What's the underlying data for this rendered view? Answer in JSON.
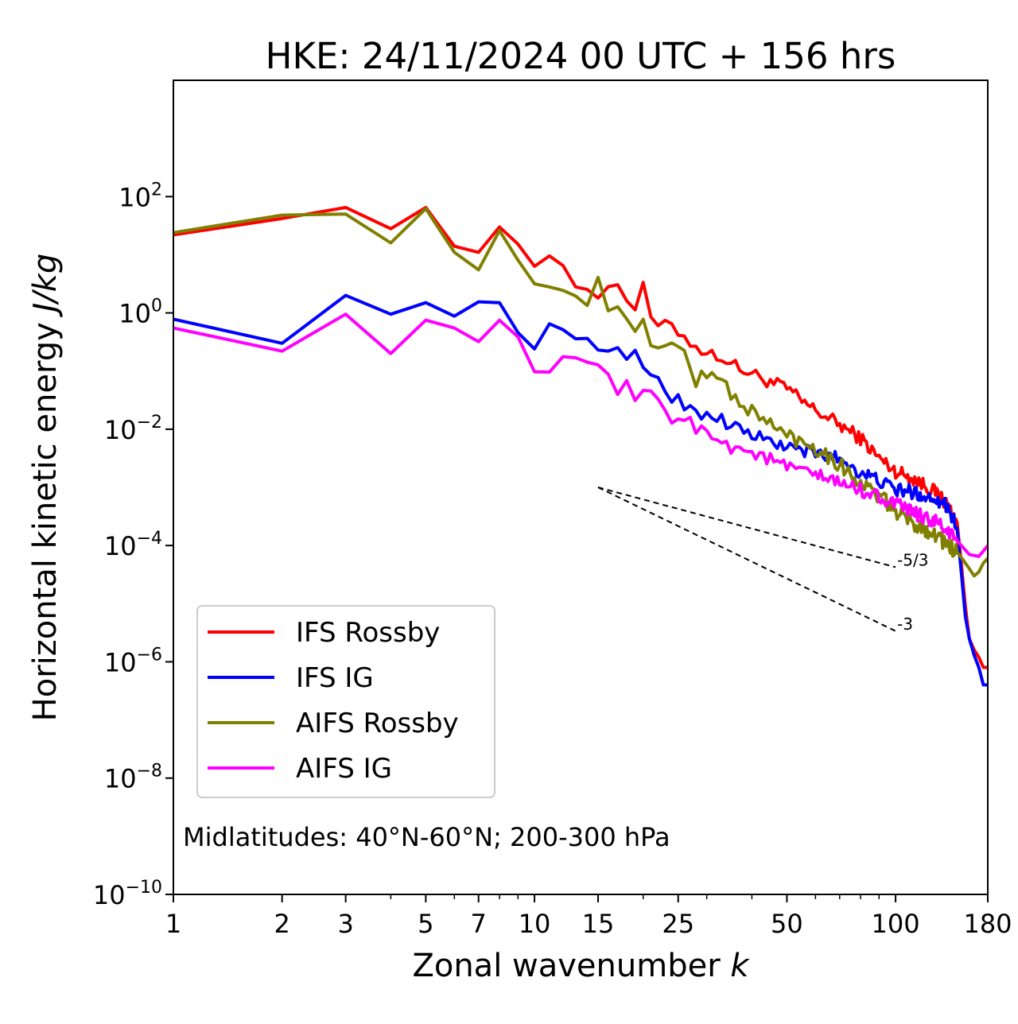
{
  "chart_data": {
    "type": "line",
    "title": "HKE: 24/11/2024 00 UTC + 156 hrs",
    "xlabel": "Zonal wavenumber",
    "xlabel_var": "k",
    "ylabel": "Horizontal kinetic energy",
    "ylabel_units": "J/kg",
    "xscale": "log",
    "yscale": "log",
    "xlim": [
      1,
      180
    ],
    "ylim": [
      1e-10,
      10000
    ],
    "x_ticks": [
      1,
      2,
      3,
      5,
      7,
      10,
      15,
      25,
      50,
      100,
      180
    ],
    "y_ticks": [
      {
        "base": "10",
        "exp": "−10",
        "value": 1e-10
      },
      {
        "base": "10",
        "exp": "−8",
        "value": 1e-08
      },
      {
        "base": "10",
        "exp": "−6",
        "value": 1e-06
      },
      {
        "base": "10",
        "exp": "−4",
        "value": 0.0001
      },
      {
        "base": "10",
        "exp": "−2",
        "value": 0.01
      },
      {
        "base": "10",
        "exp": "0",
        "value": 1
      },
      {
        "base": "10",
        "exp": "2",
        "value": 100
      }
    ],
    "grid": false,
    "legend_position": "lower-left",
    "annotation": "Midlatitudes: 40°N-60°N; 200-300 hPa",
    "reference_slopes": [
      {
        "label": "-5/3",
        "slope": -1.6667,
        "x": [
          15,
          100
        ],
        "y0": 0.001
      },
      {
        "label": "-3",
        "slope": -3,
        "x": [
          15,
          100
        ],
        "y0": 0.001
      }
    ],
    "series": [
      {
        "name": "IFS Rossby",
        "color": "#ff0000",
        "anchors": [
          [
            1,
            22
          ],
          [
            2,
            42
          ],
          [
            3,
            65
          ],
          [
            4,
            28
          ],
          [
            5,
            65
          ],
          [
            6,
            14
          ],
          [
            7,
            11
          ],
          [
            8,
            30
          ],
          [
            9,
            20
          ],
          [
            10,
            7
          ],
          [
            11,
            10
          ],
          [
            12,
            5
          ],
          [
            13,
            2.9
          ],
          [
            14,
            3
          ],
          [
            15,
            2.3
          ],
          [
            16,
            2.5
          ],
          [
            17,
            3.5
          ],
          [
            18,
            1.7
          ],
          [
            19,
            1.3
          ],
          [
            20,
            2.6
          ],
          [
            21,
            0.9
          ],
          [
            22,
            0.55
          ],
          [
            24,
            0.6
          ],
          [
            26,
            0.4
          ],
          [
            28,
            0.27
          ],
          [
            30,
            0.2
          ],
          [
            33,
            0.18
          ],
          [
            36,
            0.12
          ],
          [
            40,
            0.09
          ],
          [
            45,
            0.065
          ],
          [
            50,
            0.05
          ],
          [
            55,
            0.03
          ],
          [
            60,
            0.021
          ],
          [
            70,
            0.012
          ],
          [
            80,
            0.007
          ],
          [
            90,
            0.0032
          ],
          [
            100,
            0.0019
          ],
          [
            110,
            0.0015
          ],
          [
            120,
            0.0011
          ],
          [
            130,
            0.0008
          ],
          [
            140,
            0.00048
          ],
          [
            148,
            0.00025
          ],
          [
            152,
            5e-05
          ],
          [
            156,
            9e-06
          ],
          [
            160,
            2.5e-06
          ],
          [
            165,
            1.6e-06
          ],
          [
            170,
            1.2e-06
          ],
          [
            175,
            8e-07
          ],
          [
            180,
            8e-07
          ]
        ],
        "noise": 0.12
      },
      {
        "name": "IFS IG",
        "color": "#0000ff",
        "anchors": [
          [
            1,
            0.78
          ],
          [
            2,
            0.3
          ],
          [
            3,
            2.0
          ],
          [
            4,
            0.95
          ],
          [
            5,
            1.5
          ],
          [
            6,
            0.88
          ],
          [
            7,
            1.55
          ],
          [
            8,
            1.5
          ],
          [
            9,
            0.6
          ],
          [
            10,
            0.2
          ],
          [
            11,
            0.6
          ],
          [
            12,
            0.65
          ],
          [
            13,
            0.28
          ],
          [
            14,
            0.45
          ],
          [
            15,
            0.3
          ],
          [
            16,
            0.17
          ],
          [
            17,
            0.2
          ],
          [
            18,
            0.15
          ],
          [
            19,
            0.18
          ],
          [
            20,
            0.12
          ],
          [
            22,
            0.08
          ],
          [
            24,
            0.035
          ],
          [
            26,
            0.028
          ],
          [
            28,
            0.018
          ],
          [
            30,
            0.02
          ],
          [
            35,
            0.012
          ],
          [
            40,
            0.008
          ],
          [
            45,
            0.006
          ],
          [
            50,
            0.005
          ],
          [
            60,
            0.0038
          ],
          [
            70,
            0.0032
          ],
          [
            80,
            0.0018
          ],
          [
            90,
            0.0013
          ],
          [
            100,
            0.0009
          ],
          [
            110,
            0.00085
          ],
          [
            120,
            0.0007
          ],
          [
            130,
            0.00065
          ],
          [
            140,
            0.00045
          ],
          [
            148,
            0.0002
          ],
          [
            152,
            3.5e-05
          ],
          [
            156,
            6e-06
          ],
          [
            160,
            2.5e-06
          ],
          [
            165,
            1.3e-06
          ],
          [
            170,
            8e-07
          ],
          [
            175,
            4e-07
          ],
          [
            180,
            4e-07
          ]
        ],
        "noise": 0.12
      },
      {
        "name": "AIFS Rossby",
        "color": "#808000",
        "anchors": [
          [
            1,
            24
          ],
          [
            2,
            48
          ],
          [
            3,
            50
          ],
          [
            4,
            16
          ],
          [
            5,
            62
          ],
          [
            6,
            11
          ],
          [
            7,
            5.5
          ],
          [
            8,
            26
          ],
          [
            9,
            11
          ],
          [
            10,
            3.5
          ],
          [
            11,
            2.2
          ],
          [
            12,
            3
          ],
          [
            13,
            2
          ],
          [
            14,
            1.8
          ],
          [
            15,
            3
          ],
          [
            16,
            1.3
          ],
          [
            17,
            1.2
          ],
          [
            18,
            0.65
          ],
          [
            19,
            0.45
          ],
          [
            20,
            0.6
          ],
          [
            21,
            0.35
          ],
          [
            22,
            0.3
          ],
          [
            24,
            0.27
          ],
          [
            26,
            0.22
          ],
          [
            28,
            0.07
          ],
          [
            30,
            0.08
          ],
          [
            32,
            0.09
          ],
          [
            35,
            0.04
          ],
          [
            40,
            0.02
          ],
          [
            45,
            0.012
          ],
          [
            50,
            0.008
          ],
          [
            55,
            0.006
          ],
          [
            60,
            0.005
          ],
          [
            70,
            0.0025
          ],
          [
            80,
            0.0012
          ],
          [
            90,
            0.0007
          ],
          [
            100,
            0.0004
          ],
          [
            110,
            0.00025
          ],
          [
            120,
            0.0002
          ],
          [
            130,
            0.00015
          ],
          [
            140,
            0.0001
          ],
          [
            150,
            7e-05
          ],
          [
            160,
            4e-05
          ],
          [
            165,
            3e-05
          ],
          [
            170,
            3.5e-05
          ],
          [
            175,
            5e-05
          ],
          [
            180,
            6e-05
          ]
        ],
        "noise": 0.14
      },
      {
        "name": "AIFS IG",
        "color": "#ff00ff",
        "anchors": [
          [
            1,
            0.55
          ],
          [
            2,
            0.22
          ],
          [
            3,
            0.95
          ],
          [
            4,
            0.2
          ],
          [
            5,
            0.75
          ],
          [
            6,
            0.55
          ],
          [
            7,
            0.32
          ],
          [
            8,
            0.75
          ],
          [
            9,
            0.5
          ],
          [
            10,
            0.08
          ],
          [
            11,
            0.12
          ],
          [
            12,
            0.2
          ],
          [
            13,
            0.13
          ],
          [
            14,
            0.11
          ],
          [
            15,
            0.1
          ],
          [
            16,
            0.09
          ],
          [
            17,
            0.045
          ],
          [
            18,
            0.052
          ],
          [
            19,
            0.035
          ],
          [
            20,
            0.05
          ],
          [
            22,
            0.025
          ],
          [
            24,
            0.015
          ],
          [
            26,
            0.018
          ],
          [
            28,
            0.009
          ],
          [
            30,
            0.01
          ],
          [
            35,
            0.005
          ],
          [
            40,
            0.004
          ],
          [
            45,
            0.003
          ],
          [
            50,
            0.0022
          ],
          [
            55,
            0.0019
          ],
          [
            60,
            0.0016
          ],
          [
            70,
            0.0012
          ],
          [
            80,
            0.0009
          ],
          [
            90,
            0.0007
          ],
          [
            100,
            0.0005
          ],
          [
            110,
            0.0004
          ],
          [
            120,
            0.0003
          ],
          [
            130,
            0.00025
          ],
          [
            140,
            0.00017
          ],
          [
            150,
            0.00011
          ],
          [
            160,
            7e-05
          ],
          [
            170,
            6.5e-05
          ],
          [
            175,
            8e-05
          ],
          [
            180,
            0.0001
          ]
        ],
        "noise": 0.12
      }
    ]
  }
}
